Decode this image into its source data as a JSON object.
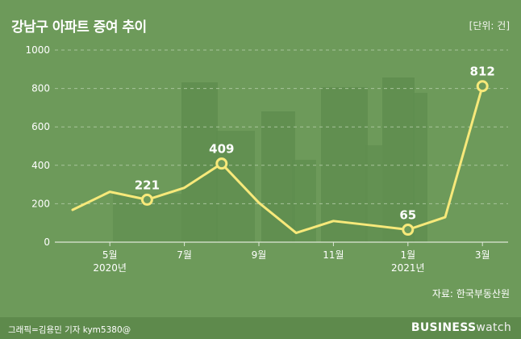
{
  "header": {
    "title": "강남구 아파트 증여 추이",
    "unit": "[단위: 건]"
  },
  "footer": {
    "source": "자료: 한국부동산원",
    "credit": "그래픽=김용민 기자 kym5380@",
    "brand_bold": "BUSINESS",
    "brand_light": "watch"
  },
  "colors": {
    "background": "#6d9a5a",
    "line": "#f7e97a",
    "grid": "#a8c49a",
    "buildings": "#5f8d4f"
  },
  "chart_data": {
    "type": "line",
    "x": [
      "2020-04",
      "2020-05",
      "2020-06",
      "2020-07",
      "2020-08",
      "2020-09",
      "2020-10",
      "2020-11",
      "2020-12",
      "2021-01",
      "2021-02",
      "2021-03"
    ],
    "series": [
      {
        "values": [
          168,
          262,
          221,
          283,
          409,
          205,
          48,
          110,
          88,
          65,
          130,
          812
        ]
      }
    ],
    "labeled_points": [
      {
        "x": "2020-06",
        "label": "221"
      },
      {
        "x": "2020-08",
        "label": "409"
      },
      {
        "x": "2021-01",
        "label": "65"
      },
      {
        "x": "2021-03",
        "label": "812"
      }
    ],
    "x_ticks": [
      {
        "x": "2020-05",
        "label": "5월",
        "sub": "2020년"
      },
      {
        "x": "2020-07",
        "label": "7월",
        "sub": ""
      },
      {
        "x": "2020-09",
        "label": "9월",
        "sub": ""
      },
      {
        "x": "2020-11",
        "label": "11월",
        "sub": ""
      },
      {
        "x": "2021-01",
        "label": "1월",
        "sub": "2021년"
      },
      {
        "x": "2021-03",
        "label": "3월",
        "sub": ""
      }
    ],
    "y_ticks": [
      "0",
      "200",
      "400",
      "600",
      "800",
      "1000"
    ],
    "ylim": [
      0,
      1000
    ],
    "grid": true,
    "title": "강남구 아파트 증여 추이",
    "xlabel": "",
    "ylabel": ""
  }
}
